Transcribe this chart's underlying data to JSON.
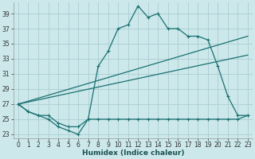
{
  "xlabel": "Humidex (Indice chaleur)",
  "background_color": "#cce8eb",
  "grid_color": "#aacdd2",
  "line_color": "#1a7070",
  "xlim": [
    -0.5,
    23.5
  ],
  "ylim": [
    22.5,
    40.5
  ],
  "yticks": [
    23,
    25,
    27,
    29,
    31,
    33,
    35,
    37,
    39
  ],
  "xticks": [
    0,
    1,
    2,
    3,
    4,
    5,
    6,
    7,
    8,
    9,
    10,
    11,
    12,
    13,
    14,
    15,
    16,
    17,
    18,
    19,
    20,
    21,
    22,
    23
  ],
  "curve_main_x": [
    0,
    1,
    2,
    3,
    4,
    5,
    6,
    7,
    8,
    9,
    10,
    11,
    12,
    13,
    14,
    15,
    16,
    17,
    18,
    19,
    20,
    21,
    22,
    23
  ],
  "curve_main_y": [
    27,
    26,
    25.5,
    25,
    24,
    23.5,
    23,
    25,
    32,
    34,
    37,
    37.5,
    40,
    38.5,
    39,
    37,
    37,
    36,
    36,
    35.5,
    32,
    28,
    25.5,
    25.5
  ],
  "curve_flat_x": [
    0,
    1,
    2,
    3,
    4,
    5,
    6,
    7,
    8,
    9,
    10,
    11,
    12,
    13,
    14,
    15,
    16,
    17,
    18,
    19,
    20,
    21,
    22,
    23
  ],
  "curve_flat_y": [
    27,
    26,
    25.5,
    25.5,
    24.5,
    24,
    24,
    25,
    25,
    25,
    25,
    25,
    25,
    25,
    25,
    25,
    25,
    25,
    25,
    25,
    25,
    25,
    25,
    25.5
  ],
  "trend1_x": [
    0,
    23
  ],
  "trend1_y": [
    27,
    36
  ],
  "trend2_x": [
    0,
    23
  ],
  "trend2_y": [
    27,
    33.5
  ]
}
